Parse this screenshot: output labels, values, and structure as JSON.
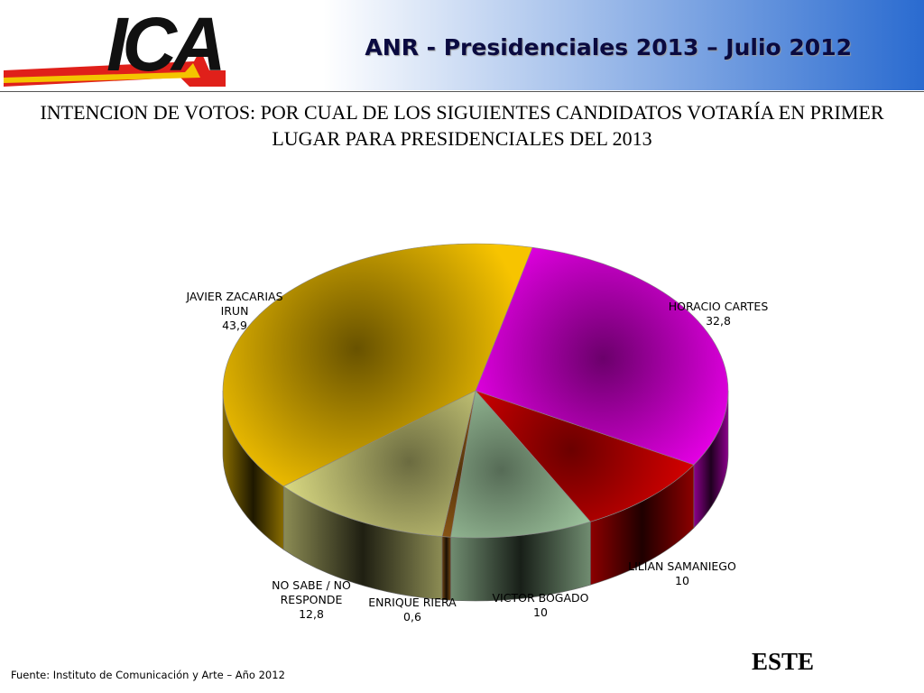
{
  "header": {
    "logo": "ICA",
    "title": "ANR - Presidenciales 2013 – Julio 2012"
  },
  "chart_data": {
    "type": "pie3d",
    "title": "INTENCION DE VOTOS: POR CUAL DE LOS SIGUIENTES CANDIDATOS VOTARÍA EN PRIMER LUGAR PARA PRESIDENCIALES DEL 2013",
    "categories": [
      "HORACIO CARTES",
      "LILIAN SAMANIEGO",
      "VICTOR BOGADO",
      "ENRIQUE RIERA",
      "NO SABE / NO RESPONDE",
      "JAVIER ZACARIAS IRUN"
    ],
    "values": [
      32.8,
      10,
      10,
      0.6,
      12.8,
      43.9
    ],
    "value_labels": [
      "32,8",
      "10",
      "10",
      "0,6",
      "12,8",
      "43,9"
    ],
    "colors": [
      "#ff00ff",
      "#ff0000",
      "#ccffcc",
      "#d08020",
      "#ffff99",
      "#f7c400"
    ]
  },
  "footer": {
    "source": "Fuente: Instituto de Comunicación y Arte – Año 2012",
    "region": "ESTE"
  }
}
